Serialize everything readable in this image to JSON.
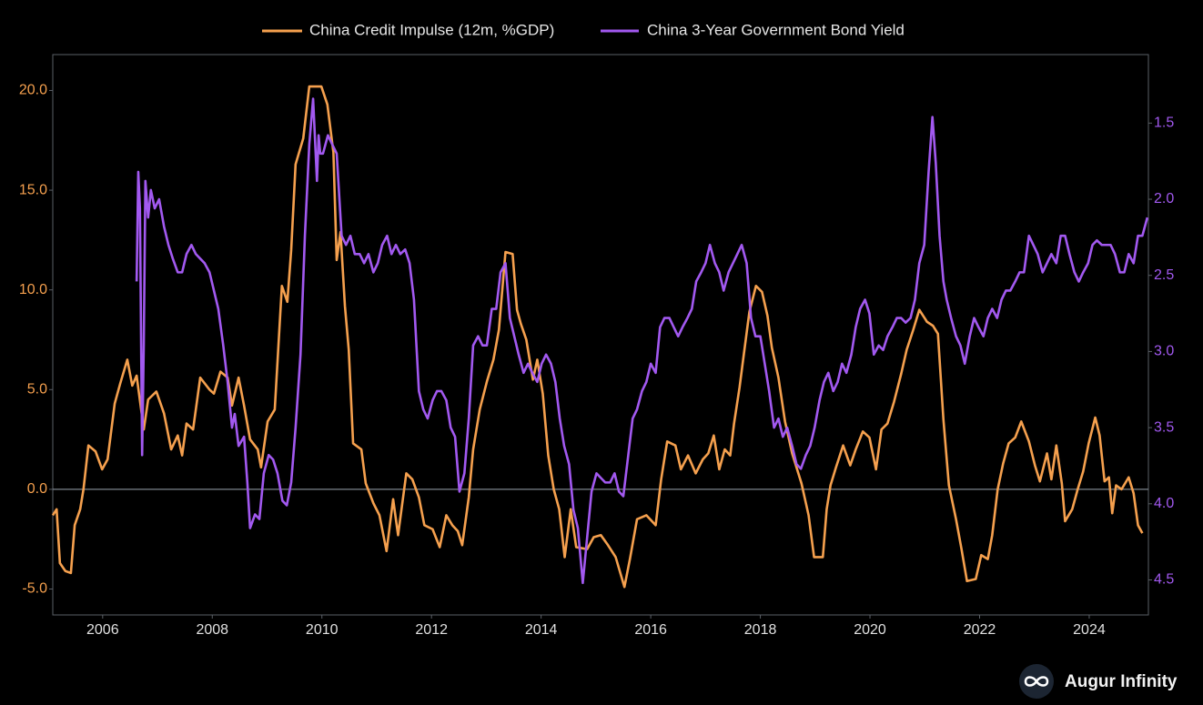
{
  "chart_data": {
    "type": "line",
    "zero_line": true,
    "xlim": [
      2005.09,
      2025.08
    ],
    "xticks": [
      2006,
      2008,
      2010,
      2012,
      2014,
      2016,
      2018,
      2020,
      2022,
      2024
    ],
    "ylim": [
      -6.3,
      21.8
    ],
    "yticks": [
      {
        "value": -5,
        "label": "-5.0"
      },
      {
        "value": 0,
        "label": "0.0"
      },
      {
        "value": 5,
        "label": "5.0"
      },
      {
        "value": 10,
        "label": "10.0"
      },
      {
        "value": 15,
        "label": "15.0"
      },
      {
        "value": 20,
        "label": "20.0"
      }
    ],
    "y2lim": [
      4.73,
      1.05
    ],
    "y2ticks": [
      1.5,
      {
        "value": 2,
        "label": "2.0"
      },
      2.5,
      {
        "value": 3,
        "label": "3.0"
      },
      3.5,
      {
        "value": 4,
        "label": "4.0"
      },
      4.5
    ],
    "watermark": "Augur Infinity",
    "series": [
      {
        "name": "China Credit Impulse (12m, %GDP)",
        "color": "#f5a04e",
        "x": [
          2005.09,
          2005.16,
          2005.22,
          2005.32,
          2005.42,
          2005.49,
          2005.59,
          2005.65,
          2005.74,
          2005.87,
          2005.99,
          2006.09,
          2006.22,
          2006.32,
          2006.45,
          2006.54,
          2006.62,
          2006.75,
          2006.83,
          2006.98,
          2007.12,
          2007.25,
          2007.37,
          2007.45,
          2007.53,
          2007.65,
          2007.7,
          2007.78,
          2007.95,
          2008.03,
          2008.15,
          2008.28,
          2008.36,
          2008.48,
          2008.58,
          2008.69,
          2008.83,
          2008.89,
          2009.01,
          2009.14,
          2009.27,
          2009.37,
          2009.44,
          2009.52,
          2009.66,
          2009.77,
          2009.99,
          2010.1,
          2010.21,
          2010.27,
          2010.34,
          2010.42,
          2010.49,
          2010.57,
          2010.72,
          2010.8,
          2010.94,
          2011.05,
          2011.18,
          2011.3,
          2011.39,
          2011.54,
          2011.65,
          2011.77,
          2011.87,
          2012.02,
          2012.15,
          2012.27,
          2012.38,
          2012.48,
          2012.56,
          2012.68,
          2012.76,
          2012.88,
          2013.01,
          2013.13,
          2013.23,
          2013.35,
          2013.48,
          2013.56,
          2013.63,
          2013.73,
          2013.85,
          2013.93,
          2014.03,
          2014.13,
          2014.23,
          2014.33,
          2014.43,
          2014.54,
          2014.64,
          2014.84,
          2014.96,
          2015.09,
          2015.22,
          2015.36,
          2015.52,
          2015.62,
          2015.75,
          2015.92,
          2016.09,
          2016.19,
          2016.3,
          2016.45,
          2016.55,
          2016.68,
          2016.82,
          2016.95,
          2017.05,
          2017.15,
          2017.25,
          2017.35,
          2017.45,
          2017.52,
          2017.62,
          2017.7,
          2017.8,
          2017.92,
          2018.03,
          2018.13,
          2018.21,
          2018.33,
          2018.45,
          2018.58,
          2018.75,
          2018.88,
          2018.98,
          2019.14,
          2019.21,
          2019.28,
          2019.38,
          2019.51,
          2019.64,
          2019.74,
          2019.87,
          2019.99,
          2020.11,
          2020.21,
          2020.32,
          2020.44,
          2020.57,
          2020.67,
          2020.79,
          2020.9,
          2021.04,
          2021.15,
          2021.24,
          2021.34,
          2021.44,
          2021.57,
          2021.67,
          2021.77,
          2021.93,
          2022.03,
          2022.15,
          2022.23,
          2022.33,
          2022.43,
          2022.53,
          2022.65,
          2022.76,
          2022.9,
          2023.01,
          2023.1,
          2023.23,
          2023.31,
          2023.4,
          2023.5,
          2023.56,
          2023.69,
          2023.79,
          2023.89,
          2023.99,
          2024.11,
          2024.19,
          2024.28,
          2024.36,
          2024.42,
          2024.49,
          2024.59,
          2024.72,
          2024.81,
          2024.89,
          2024.97
        ],
        "values": [
          -1.3,
          -1.0,
          -3.7,
          -4.1,
          -4.2,
          -1.8,
          -1.0,
          0.0,
          2.2,
          1.9,
          1.0,
          1.5,
          4.3,
          5.3,
          6.5,
          5.2,
          5.7,
          3.0,
          4.5,
          4.9,
          3.8,
          2.0,
          2.7,
          1.7,
          3.3,
          3.0,
          4.0,
          5.6,
          5.0,
          4.8,
          5.9,
          5.6,
          4.2,
          5.6,
          4.2,
          2.5,
          2.0,
          1.1,
          3.4,
          4.0,
          10.2,
          9.4,
          12.0,
          16.3,
          17.6,
          20.2,
          20.2,
          19.3,
          16.9,
          11.5,
          12.9,
          9.2,
          7.0,
          2.3,
          2.0,
          0.3,
          -0.7,
          -1.3,
          -3.1,
          -0.5,
          -2.3,
          0.8,
          0.5,
          -0.4,
          -1.8,
          -2.0,
          -2.9,
          -1.3,
          -1.8,
          -2.1,
          -2.8,
          -0.4,
          2.0,
          4.0,
          5.4,
          6.5,
          8.0,
          11.9,
          11.8,
          9.0,
          8.3,
          7.5,
          5.5,
          6.5,
          4.8,
          1.7,
          0.0,
          -1.0,
          -3.4,
          -1.0,
          -2.9,
          -3.0,
          -2.4,
          -2.3,
          -2.8,
          -3.4,
          -4.9,
          -3.5,
          -1.5,
          -1.3,
          -1.8,
          0.5,
          2.4,
          2.2,
          1.0,
          1.7,
          0.8,
          1.5,
          1.8,
          2.7,
          1.0,
          2.0,
          1.7,
          3.3,
          5.1,
          6.8,
          8.9,
          10.2,
          9.9,
          8.7,
          7.1,
          5.6,
          3.4,
          1.8,
          0.3,
          -1.3,
          -3.4,
          -3.4,
          -1.0,
          0.2,
          1.1,
          2.2,
          1.2,
          2.0,
          2.9,
          2.6,
          1.0,
          3.0,
          3.3,
          4.4,
          5.8,
          7.0,
          8.0,
          9.0,
          8.4,
          8.2,
          7.8,
          3.5,
          0.2,
          -1.5,
          -3.0,
          -4.6,
          -4.5,
          -3.3,
          -3.5,
          -2.3,
          0.0,
          1.3,
          2.3,
          2.6,
          3.4,
          2.4,
          1.2,
          0.4,
          1.8,
          0.5,
          2.2,
          0.3,
          -1.6,
          -1.0,
          0.0,
          0.9,
          2.3,
          3.6,
          2.7,
          0.4,
          0.6,
          -1.2,
          0.2,
          0.0,
          0.6,
          -0.2,
          -1.8,
          -2.2
        ]
      },
      {
        "name": "China 3-Year Government Bond Yield",
        "color": "#a259f0",
        "axis": "y2",
        "x": [
          2006.62,
          2006.65,
          2006.68,
          2006.72,
          2006.75,
          2006.78,
          2006.83,
          2006.88,
          2006.95,
          2007.03,
          2007.12,
          2007.2,
          2007.28,
          2007.37,
          2007.45,
          2007.53,
          2007.62,
          2007.7,
          2007.78,
          2007.86,
          2007.95,
          2008.03,
          2008.11,
          2008.2,
          2008.28,
          2008.36,
          2008.41,
          2008.48,
          2008.58,
          2008.64,
          2008.69,
          2008.78,
          2008.86,
          2008.94,
          2009.03,
          2009.11,
          2009.19,
          2009.28,
          2009.36,
          2009.44,
          2009.52,
          2009.61,
          2009.69,
          2009.77,
          2009.84,
          2009.91,
          2009.94,
          2009.97,
          2010.02,
          2010.11,
          2010.19,
          2010.27,
          2010.36,
          2010.44,
          2010.52,
          2010.6,
          2010.69,
          2010.77,
          2010.85,
          2010.94,
          2011.02,
          2011.1,
          2011.19,
          2011.27,
          2011.35,
          2011.43,
          2011.52,
          2011.6,
          2011.68,
          2011.77,
          2011.85,
          2011.93,
          2012.02,
          2012.1,
          2012.18,
          2012.27,
          2012.35,
          2012.43,
          2012.51,
          2012.6,
          2012.68,
          2012.76,
          2012.85,
          2012.93,
          2013.01,
          2013.1,
          2013.18,
          2013.26,
          2013.35,
          2013.43,
          2013.51,
          2013.59,
          2013.68,
          2013.76,
          2013.84,
          2013.93,
          2014.01,
          2014.09,
          2014.18,
          2014.26,
          2014.34,
          2014.42,
          2014.51,
          2014.59,
          2014.67,
          2014.76,
          2014.84,
          2014.92,
          2015.01,
          2015.09,
          2015.17,
          2015.26,
          2015.34,
          2015.42,
          2015.5,
          2015.59,
          2015.67,
          2015.75,
          2015.84,
          2015.92,
          2016.0,
          2016.09,
          2016.17,
          2016.25,
          2016.34,
          2016.42,
          2016.5,
          2016.58,
          2016.67,
          2016.75,
          2016.83,
          2016.92,
          2017.0,
          2017.08,
          2017.17,
          2017.25,
          2017.33,
          2017.42,
          2017.5,
          2017.58,
          2017.66,
          2017.75,
          2017.83,
          2017.91,
          2018.0,
          2018.08,
          2018.16,
          2018.25,
          2018.33,
          2018.41,
          2018.49,
          2018.58,
          2018.66,
          2018.74,
          2018.83,
          2018.91,
          2018.99,
          2019.08,
          2019.16,
          2019.24,
          2019.33,
          2019.41,
          2019.49,
          2019.57,
          2019.66,
          2019.74,
          2019.82,
          2019.91,
          2019.99,
          2020.07,
          2020.16,
          2020.24,
          2020.32,
          2020.41,
          2020.49,
          2020.57,
          2020.65,
          2020.74,
          2020.82,
          2020.9,
          2020.99,
          2021.07,
          2021.14,
          2021.2,
          2021.27,
          2021.34,
          2021.4,
          2021.48,
          2021.57,
          2021.65,
          2021.73,
          2021.82,
          2021.9,
          2021.98,
          2022.07,
          2022.15,
          2022.23,
          2022.32,
          2022.4,
          2022.48,
          2022.56,
          2022.65,
          2022.73,
          2022.81,
          2022.9,
          2022.98,
          2023.06,
          2023.15,
          2023.23,
          2023.31,
          2023.4,
          2023.48,
          2023.56,
          2023.64,
          2023.73,
          2023.81,
          2023.89,
          2023.98,
          2024.06,
          2024.14,
          2024.23,
          2024.31,
          2024.39,
          2024.47,
          2024.56,
          2024.64,
          2024.72,
          2024.81,
          2024.89,
          2024.97,
          2025.06
        ],
        "values": [
          2.54,
          1.82,
          2.06,
          3.68,
          2.96,
          1.88,
          2.12,
          1.94,
          2.06,
          2.0,
          2.18,
          2.3,
          2.39,
          2.48,
          2.48,
          2.36,
          2.3,
          2.36,
          2.39,
          2.42,
          2.48,
          2.6,
          2.72,
          2.96,
          3.2,
          3.5,
          3.41,
          3.62,
          3.56,
          3.86,
          4.16,
          4.07,
          4.1,
          3.8,
          3.68,
          3.71,
          3.8,
          3.98,
          4.01,
          3.86,
          3.5,
          3.02,
          2.24,
          1.64,
          1.34,
          1.88,
          1.58,
          1.7,
          1.7,
          1.58,
          1.64,
          1.7,
          2.24,
          2.3,
          2.24,
          2.36,
          2.36,
          2.42,
          2.36,
          2.48,
          2.42,
          2.3,
          2.24,
          2.36,
          2.3,
          2.36,
          2.33,
          2.42,
          2.66,
          3.26,
          3.38,
          3.44,
          3.32,
          3.26,
          3.26,
          3.32,
          3.5,
          3.56,
          3.92,
          3.8,
          3.44,
          2.96,
          2.9,
          2.96,
          2.96,
          2.72,
          2.72,
          2.48,
          2.42,
          2.78,
          2.9,
          3.02,
          3.14,
          3.08,
          3.14,
          3.2,
          3.08,
          3.02,
          3.08,
          3.2,
          3.44,
          3.62,
          3.74,
          4.04,
          4.16,
          4.52,
          4.22,
          3.92,
          3.8,
          3.83,
          3.86,
          3.86,
          3.8,
          3.92,
          3.95,
          3.68,
          3.44,
          3.38,
          3.26,
          3.2,
          3.08,
          3.14,
          2.84,
          2.78,
          2.78,
          2.84,
          2.9,
          2.84,
          2.78,
          2.72,
          2.54,
          2.48,
          2.42,
          2.3,
          2.42,
          2.48,
          2.6,
          2.48,
          2.42,
          2.36,
          2.3,
          2.42,
          2.78,
          2.9,
          2.9,
          3.08,
          3.26,
          3.5,
          3.44,
          3.56,
          3.5,
          3.62,
          3.74,
          3.77,
          3.68,
          3.62,
          3.5,
          3.32,
          3.2,
          3.14,
          3.26,
          3.2,
          3.08,
          3.14,
          3.02,
          2.84,
          2.72,
          2.66,
          2.75,
          3.02,
          2.96,
          2.99,
          2.9,
          2.84,
          2.78,
          2.78,
          2.81,
          2.78,
          2.66,
          2.42,
          2.3,
          1.82,
          1.46,
          1.76,
          2.24,
          2.54,
          2.66,
          2.78,
          2.9,
          2.96,
          3.08,
          2.9,
          2.78,
          2.84,
          2.9,
          2.78,
          2.72,
          2.78,
          2.66,
          2.6,
          2.6,
          2.54,
          2.48,
          2.48,
          2.24,
          2.3,
          2.36,
          2.48,
          2.42,
          2.36,
          2.42,
          2.24,
          2.24,
          2.36,
          2.48,
          2.54,
          2.48,
          2.42,
          2.3,
          2.27,
          2.3,
          2.3,
          2.3,
          2.36,
          2.48,
          2.48,
          2.36,
          2.42,
          2.24,
          2.24,
          2.12
        ]
      }
    ]
  }
}
